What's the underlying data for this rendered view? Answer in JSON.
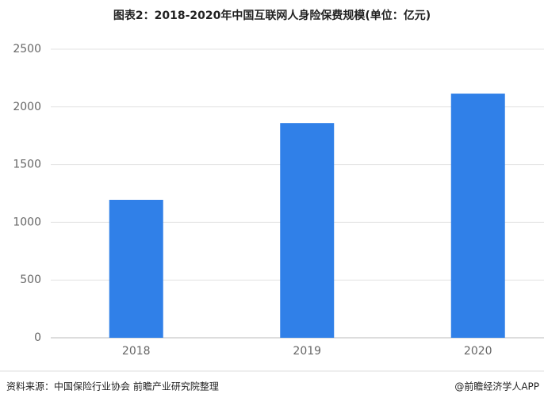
{
  "chart_data": {
    "type": "bar",
    "title": "图表2：2018-2020年中国互联网人身险保费规模(单位：亿元)",
    "categories": [
      "2018",
      "2019",
      "2020"
    ],
    "values": [
      1195,
      1860,
      2115
    ],
    "color": "#3080e8",
    "ylim": [
      0,
      2500
    ],
    "yticks": [
      0,
      500,
      1000,
      1500,
      2000,
      2500
    ],
    "grid": true,
    "source": "资料来源：中国保险行业协会 前瞻产业研究院整理",
    "credit": "@前瞻经济学人APP"
  }
}
